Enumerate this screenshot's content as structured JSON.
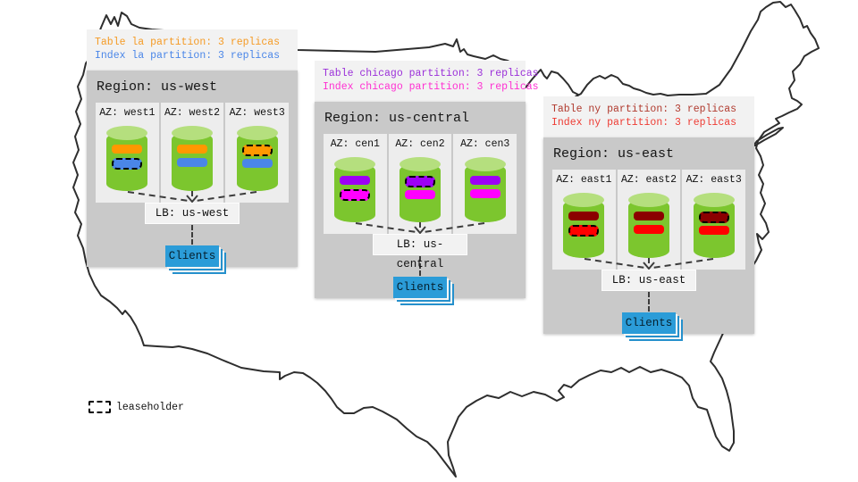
{
  "legend": {
    "label": "leaseholder"
  },
  "regions": [
    {
      "name": "us-west",
      "title": "Region: us-west",
      "annotations": [
        {
          "text": "Table la partition: 3 replicas",
          "color": "#F59B25"
        },
        {
          "text": "Index la partition: 3 replicas",
          "color": "#4A86E8"
        }
      ],
      "table_color": "#FF9800",
      "index_color": "#4A86E8",
      "azs": [
        {
          "label": "AZ: west1",
          "bars": [
            {
              "kind": "table",
              "leaseholder": false
            },
            {
              "kind": "index",
              "leaseholder": true
            }
          ]
        },
        {
          "label": "AZ: west2",
          "bars": [
            {
              "kind": "table",
              "leaseholder": false
            },
            {
              "kind": "index",
              "leaseholder": false
            }
          ]
        },
        {
          "label": "AZ: west3",
          "bars": [
            {
              "kind": "table",
              "leaseholder": true
            },
            {
              "kind": "index",
              "leaseholder": false
            }
          ]
        }
      ],
      "lb": "LB: us-west",
      "clients": "Clients"
    },
    {
      "name": "us-central",
      "title": "Region: us-central",
      "annotations": [
        {
          "text": "Table chicago partition: 3 replicas",
          "color": "#9B30D9"
        },
        {
          "text": "Index chicago partition: 3 replicas",
          "color": "#FF2FD2"
        }
      ],
      "table_color": "#9D00F5",
      "index_color": "#FF00FF",
      "azs": [
        {
          "label": "AZ: cen1",
          "bars": [
            {
              "kind": "table",
              "leaseholder": false
            },
            {
              "kind": "index",
              "leaseholder": true
            }
          ]
        },
        {
          "label": "AZ: cen2",
          "bars": [
            {
              "kind": "table",
              "leaseholder": true
            },
            {
              "kind": "index",
              "leaseholder": false
            }
          ]
        },
        {
          "label": "AZ: cen3",
          "bars": [
            {
              "kind": "table",
              "leaseholder": false
            },
            {
              "kind": "index",
              "leaseholder": false
            }
          ]
        }
      ],
      "lb": "LB: us-central",
      "clients": "Clients"
    },
    {
      "name": "us-east",
      "title": "Region: us-east",
      "annotations": [
        {
          "text": "Table ny partition: 3 replicas",
          "color": "#B03A2E"
        },
        {
          "text": "Index ny partition: 3 replicas",
          "color": "#EE3B33"
        }
      ],
      "table_color": "#8B0000",
      "index_color": "#FF0000",
      "azs": [
        {
          "label": "AZ: east1",
          "bars": [
            {
              "kind": "table",
              "leaseholder": false
            },
            {
              "kind": "index",
              "leaseholder": true
            }
          ]
        },
        {
          "label": "AZ: east2",
          "bars": [
            {
              "kind": "table",
              "leaseholder": false
            },
            {
              "kind": "index",
              "leaseholder": false
            }
          ]
        },
        {
          "label": "AZ: east3",
          "bars": [
            {
              "kind": "table",
              "leaseholder": true
            },
            {
              "kind": "index",
              "leaseholder": false
            }
          ]
        }
      ],
      "lb": "LB: us-east",
      "clients": "Clients"
    }
  ]
}
